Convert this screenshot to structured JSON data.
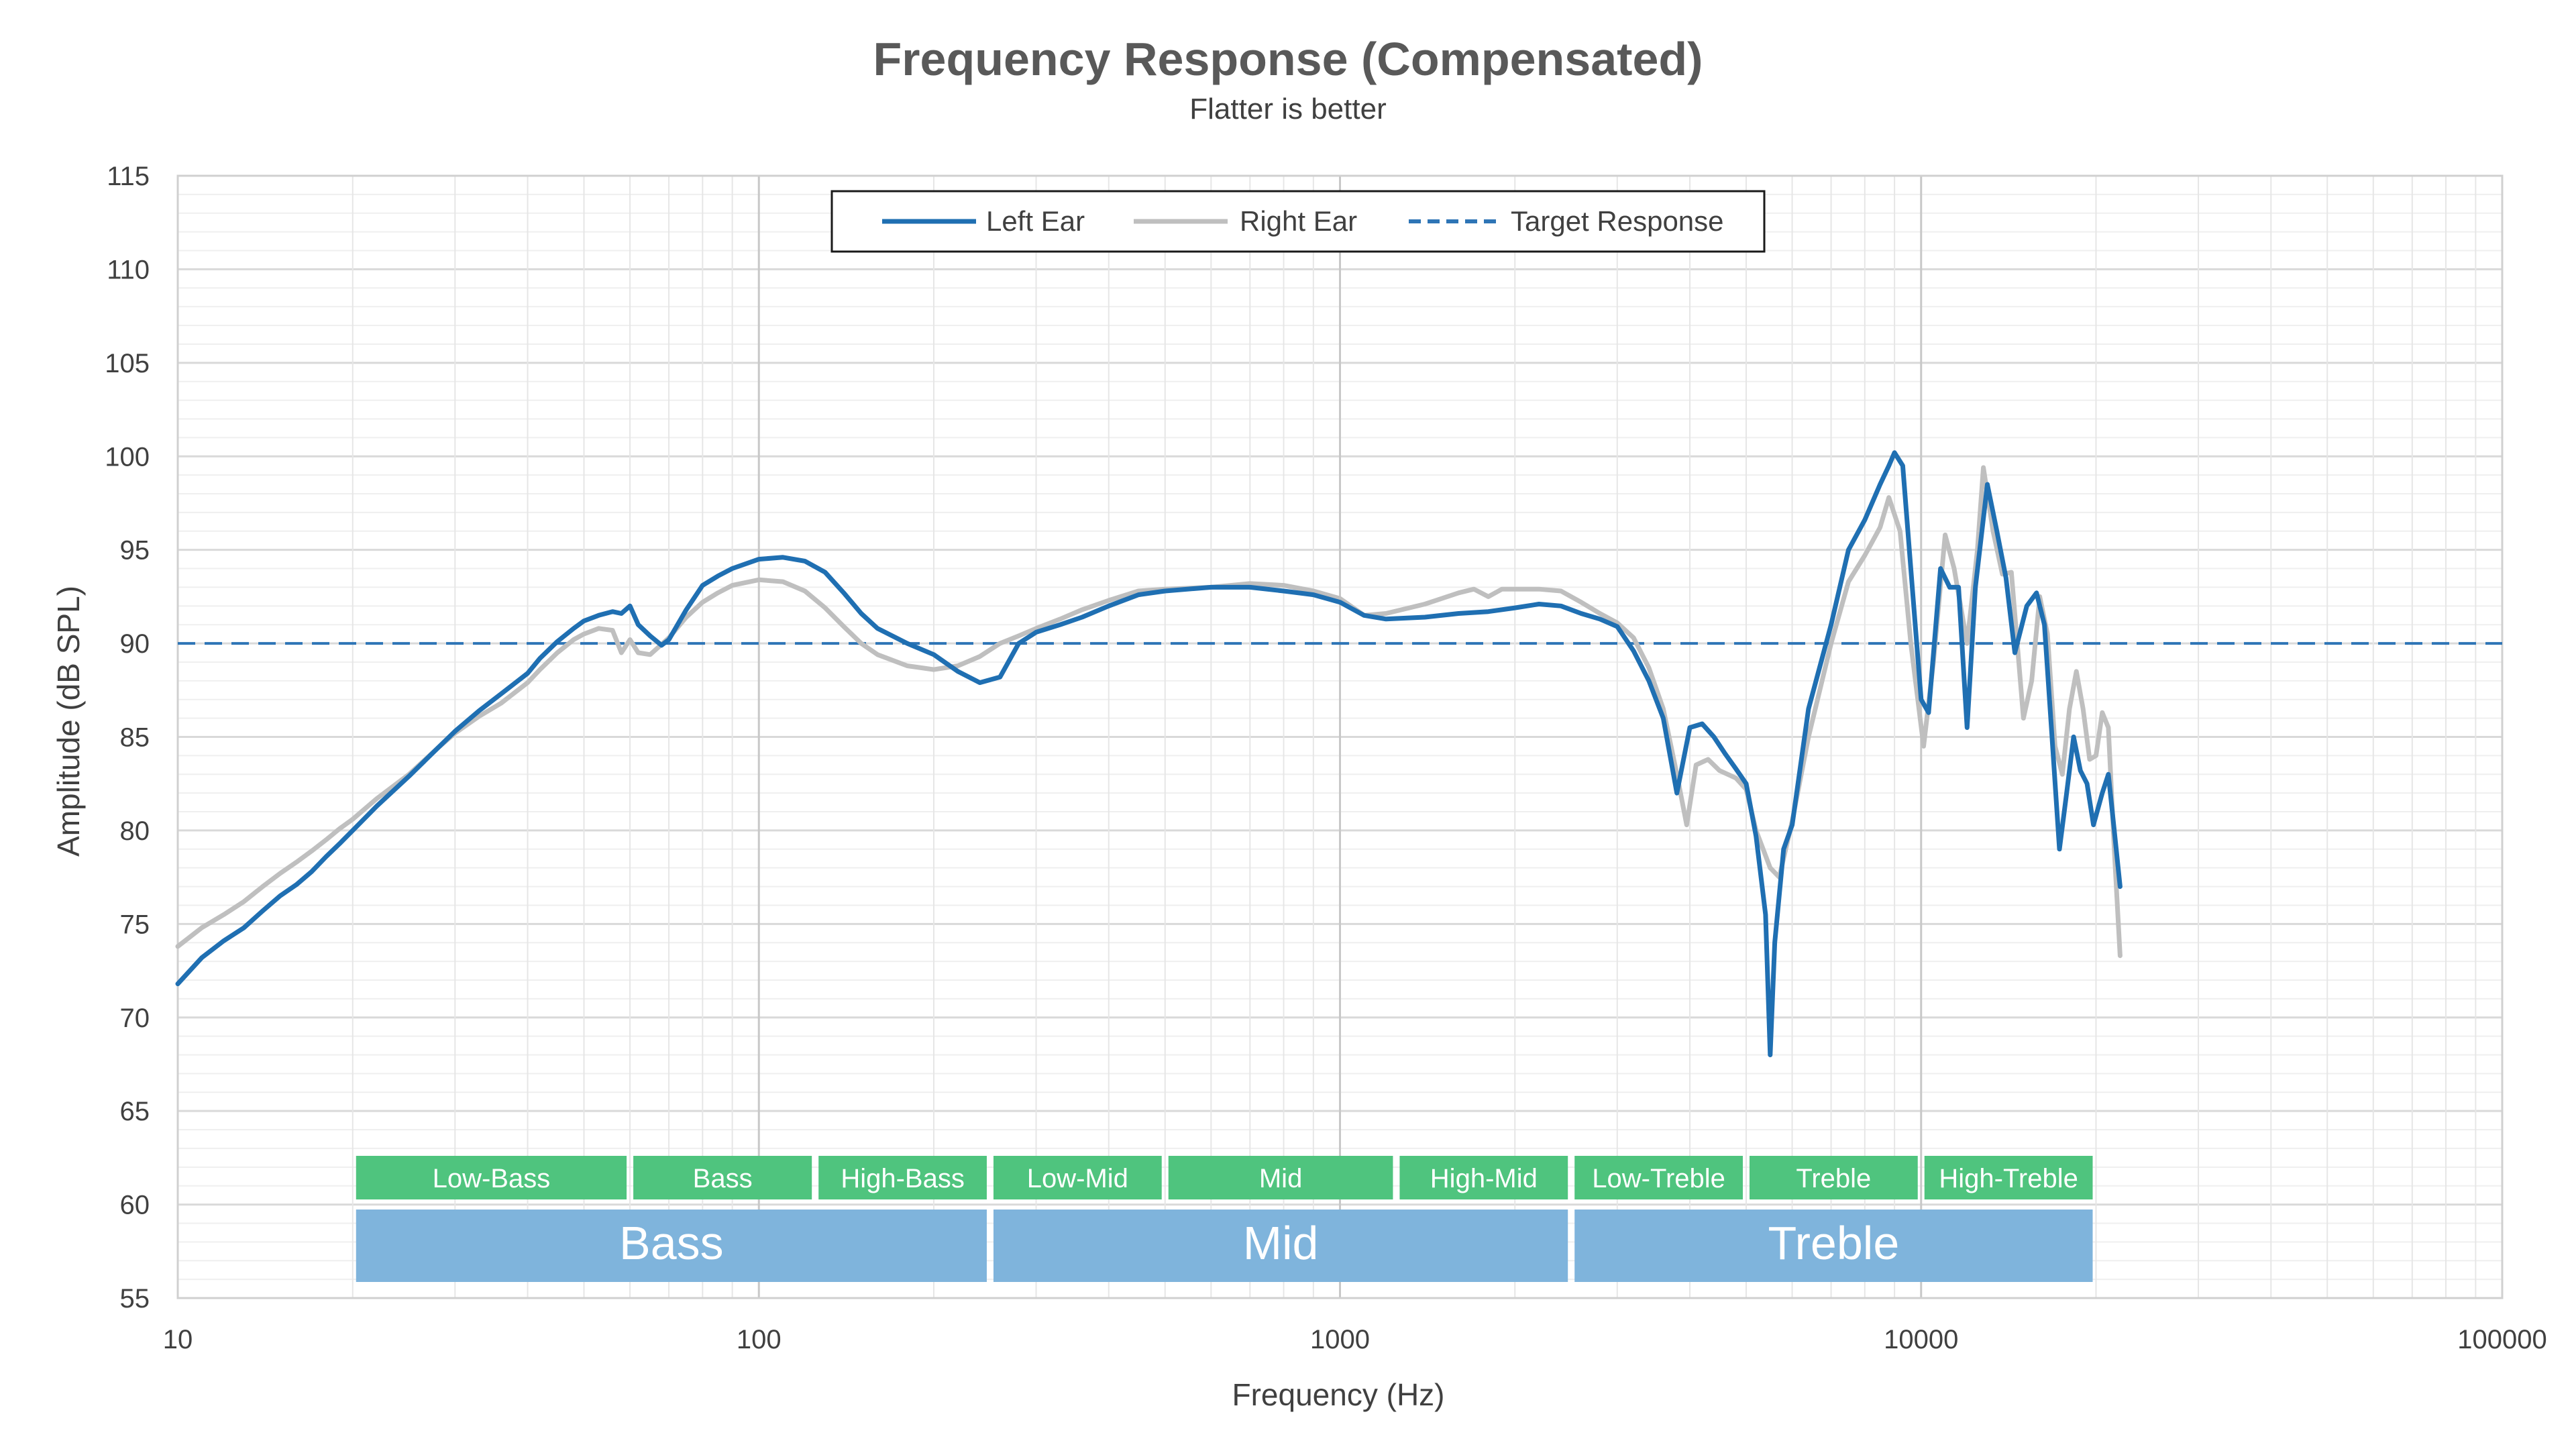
{
  "chart_data": {
    "type": "line",
    "title": "Frequency Response (Compensated)",
    "subtitle": "Flatter is better",
    "xlabel": "Frequency (Hz)",
    "ylabel": "Amplitude (dB SPL)",
    "xscale": "log",
    "xlim": [
      10,
      100000
    ],
    "ylim": [
      55,
      115
    ],
    "x_ticks": [
      "10",
      "100",
      "1000",
      "10000",
      "100000"
    ],
    "y_ticks": [
      "55",
      "60",
      "65",
      "70",
      "75",
      "80",
      "85",
      "90",
      "95",
      "100",
      "105",
      "110",
      "115"
    ],
    "grid": true,
    "legend_position": "top-center",
    "series": [
      {
        "name": "Left Ear",
        "color": "#1f6fb2",
        "style": "solid",
        "points": [
          [
            10,
            71.8
          ],
          [
            11,
            73.2
          ],
          [
            12,
            74.1
          ],
          [
            13,
            74.8
          ],
          [
            14,
            75.7
          ],
          [
            15,
            76.5
          ],
          [
            16,
            77.1
          ],
          [
            17,
            77.8
          ],
          [
            18,
            78.6
          ],
          [
            19,
            79.3
          ],
          [
            20,
            80.0
          ],
          [
            22,
            81.3
          ],
          [
            25,
            82.9
          ],
          [
            28,
            84.4
          ],
          [
            30,
            85.3
          ],
          [
            33,
            86.4
          ],
          [
            36,
            87.3
          ],
          [
            40,
            88.4
          ],
          [
            42,
            89.2
          ],
          [
            45,
            90.1
          ],
          [
            48,
            90.8
          ],
          [
            50,
            91.2
          ],
          [
            53,
            91.5
          ],
          [
            56,
            91.7
          ],
          [
            58,
            91.6
          ],
          [
            60,
            92.0
          ],
          [
            62,
            91.0
          ],
          [
            65,
            90.4
          ],
          [
            68,
            89.9
          ],
          [
            70,
            90.2
          ],
          [
            75,
            91.8
          ],
          [
            80,
            93.1
          ],
          [
            85,
            93.6
          ],
          [
            90,
            94.0
          ],
          [
            100,
            94.5
          ],
          [
            110,
            94.6
          ],
          [
            120,
            94.4
          ],
          [
            130,
            93.8
          ],
          [
            140,
            92.7
          ],
          [
            150,
            91.6
          ],
          [
            160,
            90.8
          ],
          [
            180,
            90.0
          ],
          [
            200,
            89.4
          ],
          [
            220,
            88.5
          ],
          [
            240,
            87.9
          ],
          [
            260,
            88.2
          ],
          [
            280,
            90.0
          ],
          [
            300,
            90.6
          ],
          [
            330,
            91.0
          ],
          [
            360,
            91.4
          ],
          [
            400,
            92.0
          ],
          [
            450,
            92.6
          ],
          [
            500,
            92.8
          ],
          [
            600,
            93.0
          ],
          [
            700,
            93.0
          ],
          [
            800,
            92.8
          ],
          [
            900,
            92.6
          ],
          [
            1000,
            92.2
          ],
          [
            1100,
            91.5
          ],
          [
            1200,
            91.3
          ],
          [
            1400,
            91.4
          ],
          [
            1600,
            91.6
          ],
          [
            1800,
            91.7
          ],
          [
            2000,
            91.9
          ],
          [
            2200,
            92.1
          ],
          [
            2400,
            92.0
          ],
          [
            2600,
            91.6
          ],
          [
            2800,
            91.3
          ],
          [
            3000,
            90.9
          ],
          [
            3200,
            89.6
          ],
          [
            3400,
            88.0
          ],
          [
            3600,
            86.0
          ],
          [
            3800,
            82.0
          ],
          [
            4000,
            85.5
          ],
          [
            4200,
            85.7
          ],
          [
            4400,
            85.0
          ],
          [
            4600,
            84.1
          ],
          [
            4800,
            83.3
          ],
          [
            5000,
            82.5
          ],
          [
            5200,
            79.7
          ],
          [
            5400,
            75.5
          ],
          [
            5500,
            68.0
          ],
          [
            5600,
            74.0
          ],
          [
            5800,
            79.0
          ],
          [
            6000,
            80.3
          ],
          [
            6400,
            86.5
          ],
          [
            7000,
            91.0
          ],
          [
            7500,
            95.0
          ],
          [
            8000,
            96.6
          ],
          [
            8500,
            98.5
          ],
          [
            8800,
            99.5
          ],
          [
            9000,
            100.2
          ],
          [
            9300,
            99.5
          ],
          [
            9600,
            94.0
          ],
          [
            10000,
            87.0
          ],
          [
            10300,
            86.3
          ],
          [
            10800,
            94.0
          ],
          [
            11200,
            93.0
          ],
          [
            11600,
            93.0
          ],
          [
            12000,
            85.5
          ],
          [
            12400,
            93.0
          ],
          [
            13000,
            98.5
          ],
          [
            13500,
            96.0
          ],
          [
            14000,
            93.5
          ],
          [
            14500,
            89.5
          ],
          [
            15200,
            92.0
          ],
          [
            15800,
            92.7
          ],
          [
            16300,
            91.0
          ],
          [
            16800,
            85.0
          ],
          [
            17300,
            79.0
          ],
          [
            17800,
            82.0
          ],
          [
            18300,
            85.0
          ],
          [
            18800,
            83.2
          ],
          [
            19300,
            82.5
          ],
          [
            19800,
            80.3
          ],
          [
            20500,
            82.0
          ],
          [
            21000,
            83.0
          ],
          [
            21500,
            80.0
          ],
          [
            22000,
            77.0
          ]
        ]
      },
      {
        "name": "Right Ear",
        "color": "#bfbfbf",
        "style": "solid",
        "points": [
          [
            10,
            73.8
          ],
          [
            11,
            74.8
          ],
          [
            12,
            75.5
          ],
          [
            13,
            76.2
          ],
          [
            14,
            77.0
          ],
          [
            15,
            77.7
          ],
          [
            16,
            78.3
          ],
          [
            17,
            78.9
          ],
          [
            18,
            79.5
          ],
          [
            19,
            80.1
          ],
          [
            20,
            80.6
          ],
          [
            22,
            81.7
          ],
          [
            25,
            83.0
          ],
          [
            28,
            84.4
          ],
          [
            30,
            85.2
          ],
          [
            33,
            86.1
          ],
          [
            36,
            86.8
          ],
          [
            40,
            87.9
          ],
          [
            42,
            88.6
          ],
          [
            45,
            89.5
          ],
          [
            48,
            90.2
          ],
          [
            50,
            90.5
          ],
          [
            53,
            90.8
          ],
          [
            56,
            90.7
          ],
          [
            58,
            89.5
          ],
          [
            60,
            90.2
          ],
          [
            62,
            89.5
          ],
          [
            65,
            89.4
          ],
          [
            70,
            90.3
          ],
          [
            75,
            91.4
          ],
          [
            80,
            92.2
          ],
          [
            85,
            92.7
          ],
          [
            90,
            93.1
          ],
          [
            100,
            93.4
          ],
          [
            110,
            93.3
          ],
          [
            120,
            92.8
          ],
          [
            130,
            91.9
          ],
          [
            140,
            90.9
          ],
          [
            150,
            90.0
          ],
          [
            160,
            89.4
          ],
          [
            180,
            88.8
          ],
          [
            200,
            88.6
          ],
          [
            220,
            88.8
          ],
          [
            240,
            89.3
          ],
          [
            260,
            90.0
          ],
          [
            280,
            90.4
          ],
          [
            300,
            90.8
          ],
          [
            330,
            91.3
          ],
          [
            360,
            91.8
          ],
          [
            400,
            92.3
          ],
          [
            450,
            92.8
          ],
          [
            500,
            92.9
          ],
          [
            600,
            93.0
          ],
          [
            700,
            93.2
          ],
          [
            800,
            93.1
          ],
          [
            900,
            92.8
          ],
          [
            1000,
            92.4
          ],
          [
            1100,
            91.5
          ],
          [
            1200,
            91.6
          ],
          [
            1400,
            92.1
          ],
          [
            1600,
            92.7
          ],
          [
            1700,
            92.9
          ],
          [
            1800,
            92.5
          ],
          [
            1900,
            92.9
          ],
          [
            2000,
            92.9
          ],
          [
            2200,
            92.9
          ],
          [
            2400,
            92.8
          ],
          [
            2600,
            92.2
          ],
          [
            2800,
            91.6
          ],
          [
            3000,
            91.1
          ],
          [
            3200,
            90.3
          ],
          [
            3400,
            88.7
          ],
          [
            3600,
            86.5
          ],
          [
            3800,
            83.0
          ],
          [
            3950,
            80.3
          ],
          [
            4100,
            83.5
          ],
          [
            4300,
            83.8
          ],
          [
            4500,
            83.2
          ],
          [
            4800,
            82.8
          ],
          [
            5000,
            82.2
          ],
          [
            5200,
            80.0
          ],
          [
            5500,
            78.0
          ],
          [
            5700,
            77.5
          ],
          [
            6000,
            80.5
          ],
          [
            6400,
            85.0
          ],
          [
            7000,
            90.0
          ],
          [
            7500,
            93.3
          ],
          [
            8000,
            94.7
          ],
          [
            8500,
            96.2
          ],
          [
            8800,
            97.8
          ],
          [
            9200,
            96.0
          ],
          [
            9600,
            90.0
          ],
          [
            10100,
            84.5
          ],
          [
            10500,
            89.0
          ],
          [
            11000,
            95.8
          ],
          [
            11400,
            94.0
          ],
          [
            12000,
            90.0
          ],
          [
            12500,
            95.0
          ],
          [
            12800,
            99.4
          ],
          [
            13300,
            96.0
          ],
          [
            13800,
            93.7
          ],
          [
            14300,
            93.8
          ],
          [
            15000,
            86.0
          ],
          [
            15500,
            88.0
          ],
          [
            16000,
            92.5
          ],
          [
            16500,
            90.5
          ],
          [
            17000,
            84.5
          ],
          [
            17500,
            83.0
          ],
          [
            18000,
            86.5
          ],
          [
            18500,
            88.5
          ],
          [
            19000,
            86.5
          ],
          [
            19500,
            83.8
          ],
          [
            20000,
            84.0
          ],
          [
            20500,
            86.3
          ],
          [
            21000,
            85.5
          ],
          [
            21500,
            79.0
          ],
          [
            22000,
            73.3
          ]
        ]
      },
      {
        "name": "Target Response",
        "color": "#2e75b6",
        "style": "dashed",
        "points": [
          [
            10,
            90
          ],
          [
            100000,
            90
          ]
        ]
      }
    ],
    "bands_small": [
      {
        "label": "Low-Bass",
        "from": 20,
        "to": 60
      },
      {
        "label": "Bass",
        "from": 60,
        "to": 125
      },
      {
        "label": "High-Bass",
        "from": 125,
        "to": 250
      },
      {
        "label": "Low-Mid",
        "from": 250,
        "to": 500
      },
      {
        "label": "Mid",
        "from": 500,
        "to": 1250
      },
      {
        "label": "High-Mid",
        "from": 1250,
        "to": 2500
      },
      {
        "label": "Low-Treble",
        "from": 2500,
        "to": 5000
      },
      {
        "label": "Treble",
        "from": 5000,
        "to": 10000
      },
      {
        "label": "High-Treble",
        "from": 10000,
        "to": 20000
      }
    ],
    "bands_large": [
      {
        "label": "Bass",
        "from": 20,
        "to": 250
      },
      {
        "label": "Mid",
        "from": 250,
        "to": 2500
      },
      {
        "label": "Treble",
        "from": 2500,
        "to": 20000
      }
    ],
    "band_colors": {
      "small": "#4fc47e",
      "large": "#7fb4dc"
    }
  }
}
